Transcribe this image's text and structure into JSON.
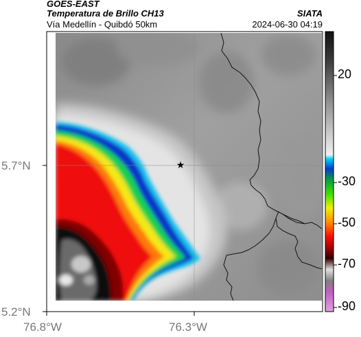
{
  "header": {
    "source": "GOES-EAST",
    "product": "Temperatura de Brillo CH13",
    "region": "Vía Medellín - Quibdó 50km",
    "agency": "SIATA",
    "datetime": "2024-06-30 04:19"
  },
  "axes": {
    "lat_labels": [
      "5.7°N",
      "5.2°N"
    ],
    "lon_labels": [
      "76.8°W",
      "76.3°W"
    ]
  },
  "colorbar": {
    "tick_labels": [
      "20",
      "-30",
      "-50",
      "-70",
      "-90"
    ],
    "colors": [
      "#1a1a1a",
      "#5a5a5a",
      "#a8a8a8",
      "#e4e4e4",
      "#00c8f0",
      "#1010c0",
      "#00d040",
      "#f0f000",
      "#ff2000",
      "#600000",
      "#c0c0c0",
      "#b040c0"
    ]
  },
  "map": {
    "marker_icon": "star-icon",
    "cold_cloud_colors": {
      "cyan": "#19c4ee",
      "blue": "#1030c8",
      "green": "#18d050",
      "yellow": "#f4e818",
      "orange": "#ff7a10",
      "red": "#f01010",
      "dark_red": "#800000",
      "black": "#080808",
      "gray": "#6a6a6a"
    },
    "background_colors": [
      "#8c8c8c",
      "#a4a4a4",
      "#bcbcbc",
      "#e2e2e2"
    ]
  }
}
